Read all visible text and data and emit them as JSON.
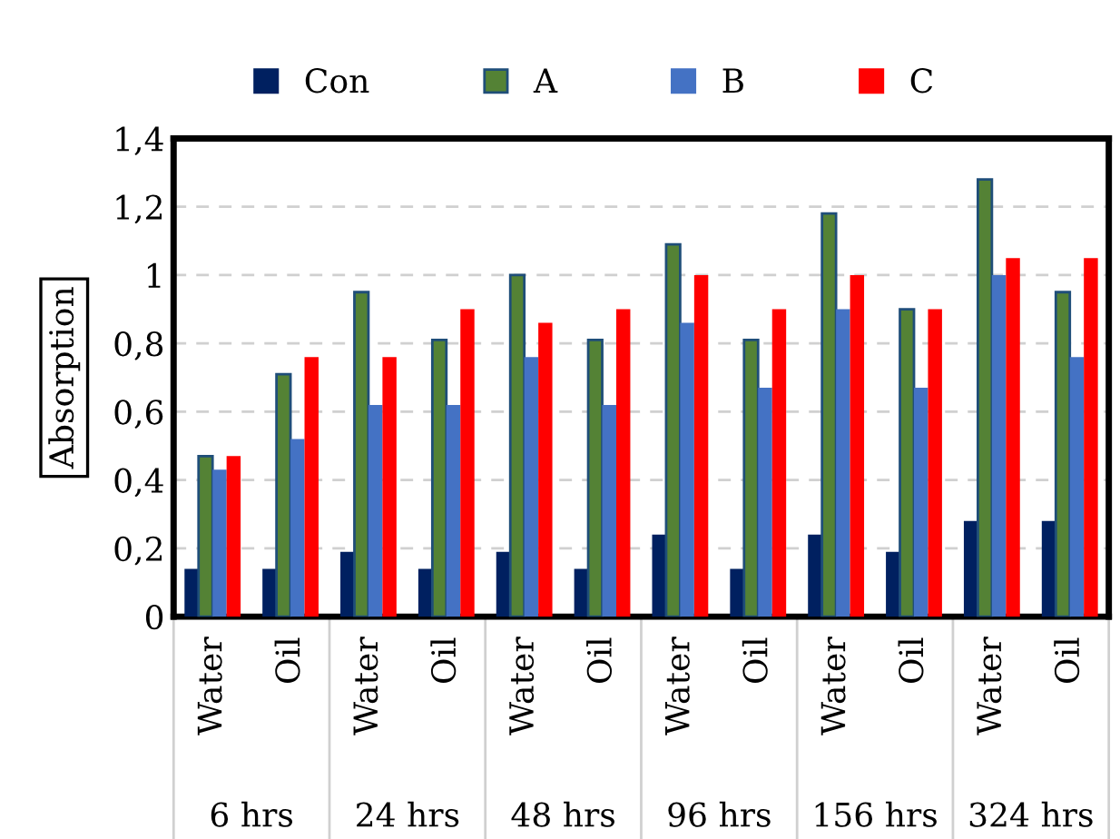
{
  "chart_data": {
    "type": "bar",
    "ylabel": "Absorption",
    "categories": [
      "Water",
      "Oil",
      "Water",
      "Oil",
      "Water",
      "Oil",
      "Water",
      "Oil",
      "Water",
      "Oil",
      "Water",
      "Oil"
    ],
    "annotations": [
      "6 hrs",
      "24 hrs",
      "48 hrs",
      "96 hrs",
      "156 hrs",
      "324 hrs"
    ],
    "series": [
      {
        "name": "Con",
        "color": "#002060",
        "values": [
          0.14,
          0.14,
          0.19,
          0.14,
          0.19,
          0.14,
          0.24,
          0.14,
          0.24,
          0.19,
          0.28,
          0.28
        ]
      },
      {
        "name": "A",
        "color": "#548235",
        "values": [
          0.47,
          0.71,
          0.95,
          0.81,
          1.0,
          0.81,
          1.09,
          0.81,
          1.18,
          0.9,
          1.28,
          0.95
        ]
      },
      {
        "name": "B",
        "color": "#4472c4",
        "values": [
          0.43,
          0.52,
          0.62,
          0.62,
          0.76,
          0.62,
          0.86,
          0.67,
          0.9,
          0.67,
          1.0,
          0.76
        ]
      },
      {
        "name": "C",
        "color": "#ff0000",
        "values": [
          0.47,
          0.76,
          0.76,
          0.9,
          0.86,
          0.9,
          1.0,
          0.9,
          1.0,
          0.9,
          1.05,
          1.05
        ]
      }
    ],
    "ylim": [
      0,
      1.4
    ],
    "yticks": [
      0,
      {
        "value": 0.2,
        "label": "0,2"
      },
      {
        "value": 0.4,
        "label": "0,4"
      },
      {
        "value": 0.6,
        "label": "0,6"
      },
      {
        "value": 0.8,
        "label": "0,8"
      },
      1,
      {
        "value": 1.2,
        "label": "1,2"
      },
      {
        "value": 1.4,
        "label": "1,4"
      }
    ],
    "grid": "y",
    "legend": "top"
  }
}
